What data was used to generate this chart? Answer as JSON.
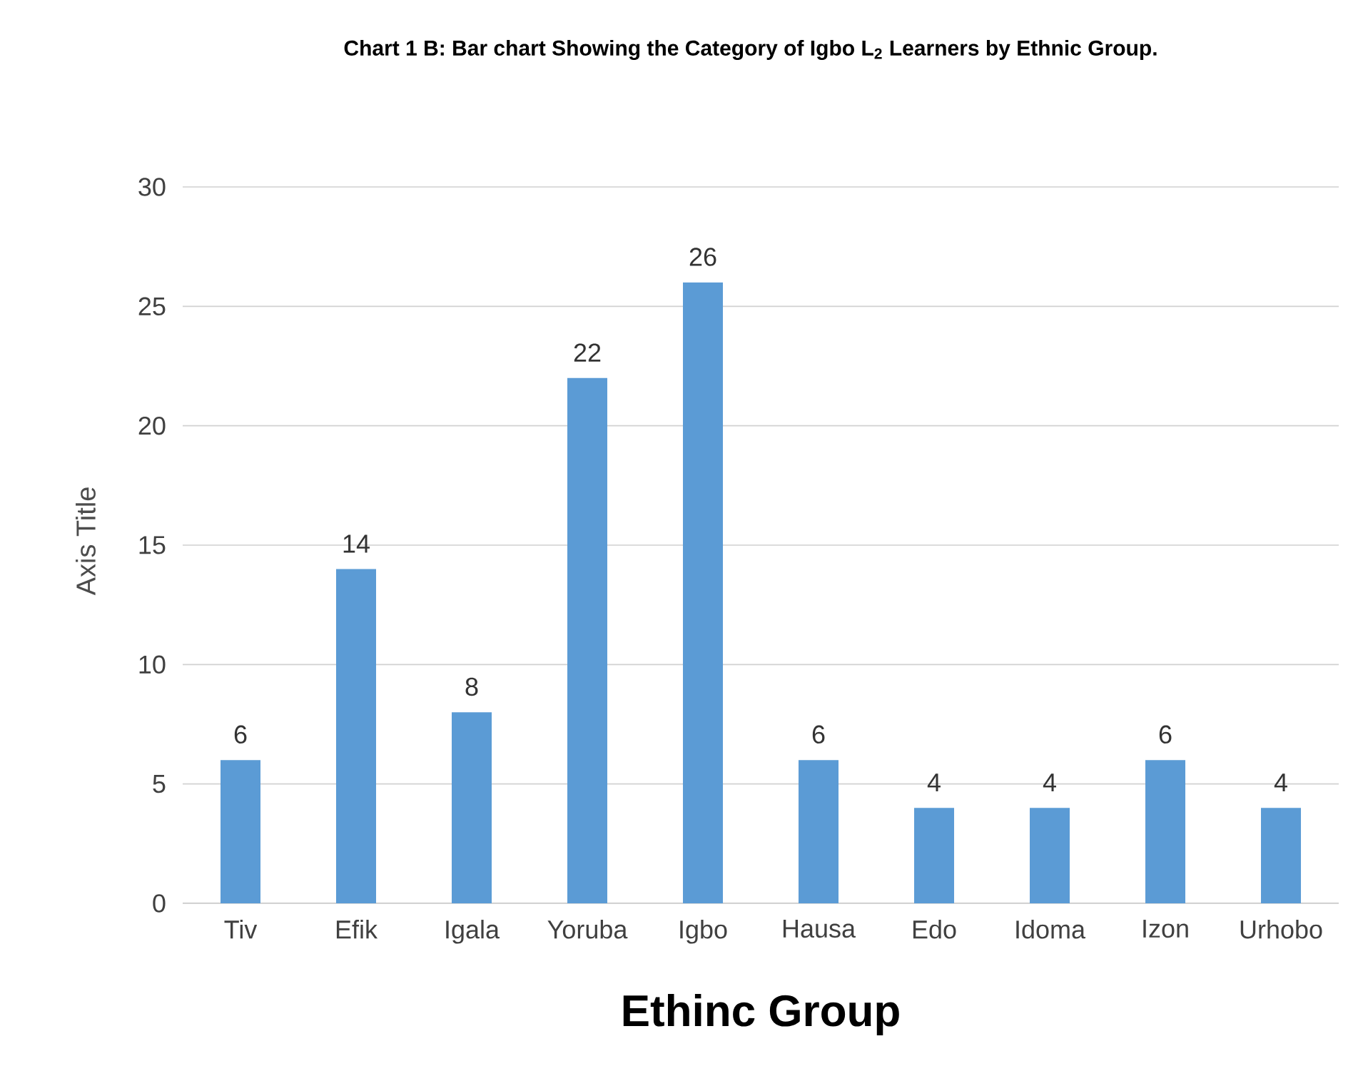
{
  "chart_data": {
    "type": "bar",
    "title": "Chart 1 B: Bar chart Showing the Category of Igbo L$_{2}$ Learners by Ethnic Group.",
    "xlabel": "Ethinc Group",
    "ylabel": "Axis Title",
    "categories": [
      "Tiv",
      "Efik",
      "Igala",
      "Yoruba",
      "Igbo",
      "Hausa",
      "Edo",
      "Idoma",
      "Izon",
      "Urhobo"
    ],
    "values": [
      6,
      14,
      8,
      22,
      26,
      6,
      4,
      4,
      6,
      4
    ],
    "color": "#5b9bd5",
    "ylim": [
      0,
      30
    ],
    "yticks": [
      0,
      5,
      10,
      15,
      20,
      25,
      30
    ],
    "grid": "y",
    "data_labels": true
  }
}
